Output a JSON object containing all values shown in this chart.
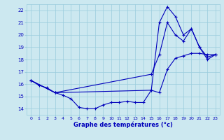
{
  "xlabel": "Graphe des températures (°c)",
  "background_color": "#cce8f0",
  "line_color": "#0000bb",
  "grid_color": "#99ccdd",
  "xlim": [
    -0.5,
    23.5
  ],
  "ylim": [
    13.5,
    22.5
  ],
  "xticks": [
    0,
    1,
    2,
    3,
    4,
    5,
    6,
    7,
    8,
    9,
    10,
    11,
    12,
    13,
    14,
    15,
    16,
    17,
    18,
    19,
    20,
    21,
    22,
    23
  ],
  "yticks": [
    14,
    15,
    16,
    17,
    18,
    19,
    20,
    21,
    22
  ],
  "series1_x": [
    0,
    1,
    2,
    3,
    4,
    5,
    6,
    7,
    8,
    9,
    10,
    11,
    12,
    13,
    14,
    15,
    16,
    17,
    18,
    19,
    20,
    21,
    22,
    23
  ],
  "series1_y": [
    16.3,
    15.9,
    15.7,
    15.3,
    15.1,
    14.8,
    14.1,
    14.0,
    14.0,
    14.3,
    14.5,
    14.5,
    14.6,
    14.5,
    14.5,
    15.5,
    15.3,
    17.2,
    18.1,
    18.3,
    18.5,
    18.5,
    18.4,
    18.4
  ],
  "series2_x": [
    0,
    3,
    15,
    16,
    17,
    18,
    19,
    20,
    21,
    22,
    23
  ],
  "series2_y": [
    16.3,
    15.3,
    15.5,
    21.0,
    22.3,
    21.5,
    20.0,
    20.5,
    19.0,
    18.2,
    18.4
  ],
  "series3_x": [
    0,
    3,
    15,
    16,
    17,
    18,
    19,
    20,
    21,
    22,
    23
  ],
  "series3_y": [
    16.3,
    15.3,
    16.8,
    18.4,
    21.0,
    20.0,
    19.5,
    20.5,
    19.0,
    18.0,
    18.4
  ]
}
